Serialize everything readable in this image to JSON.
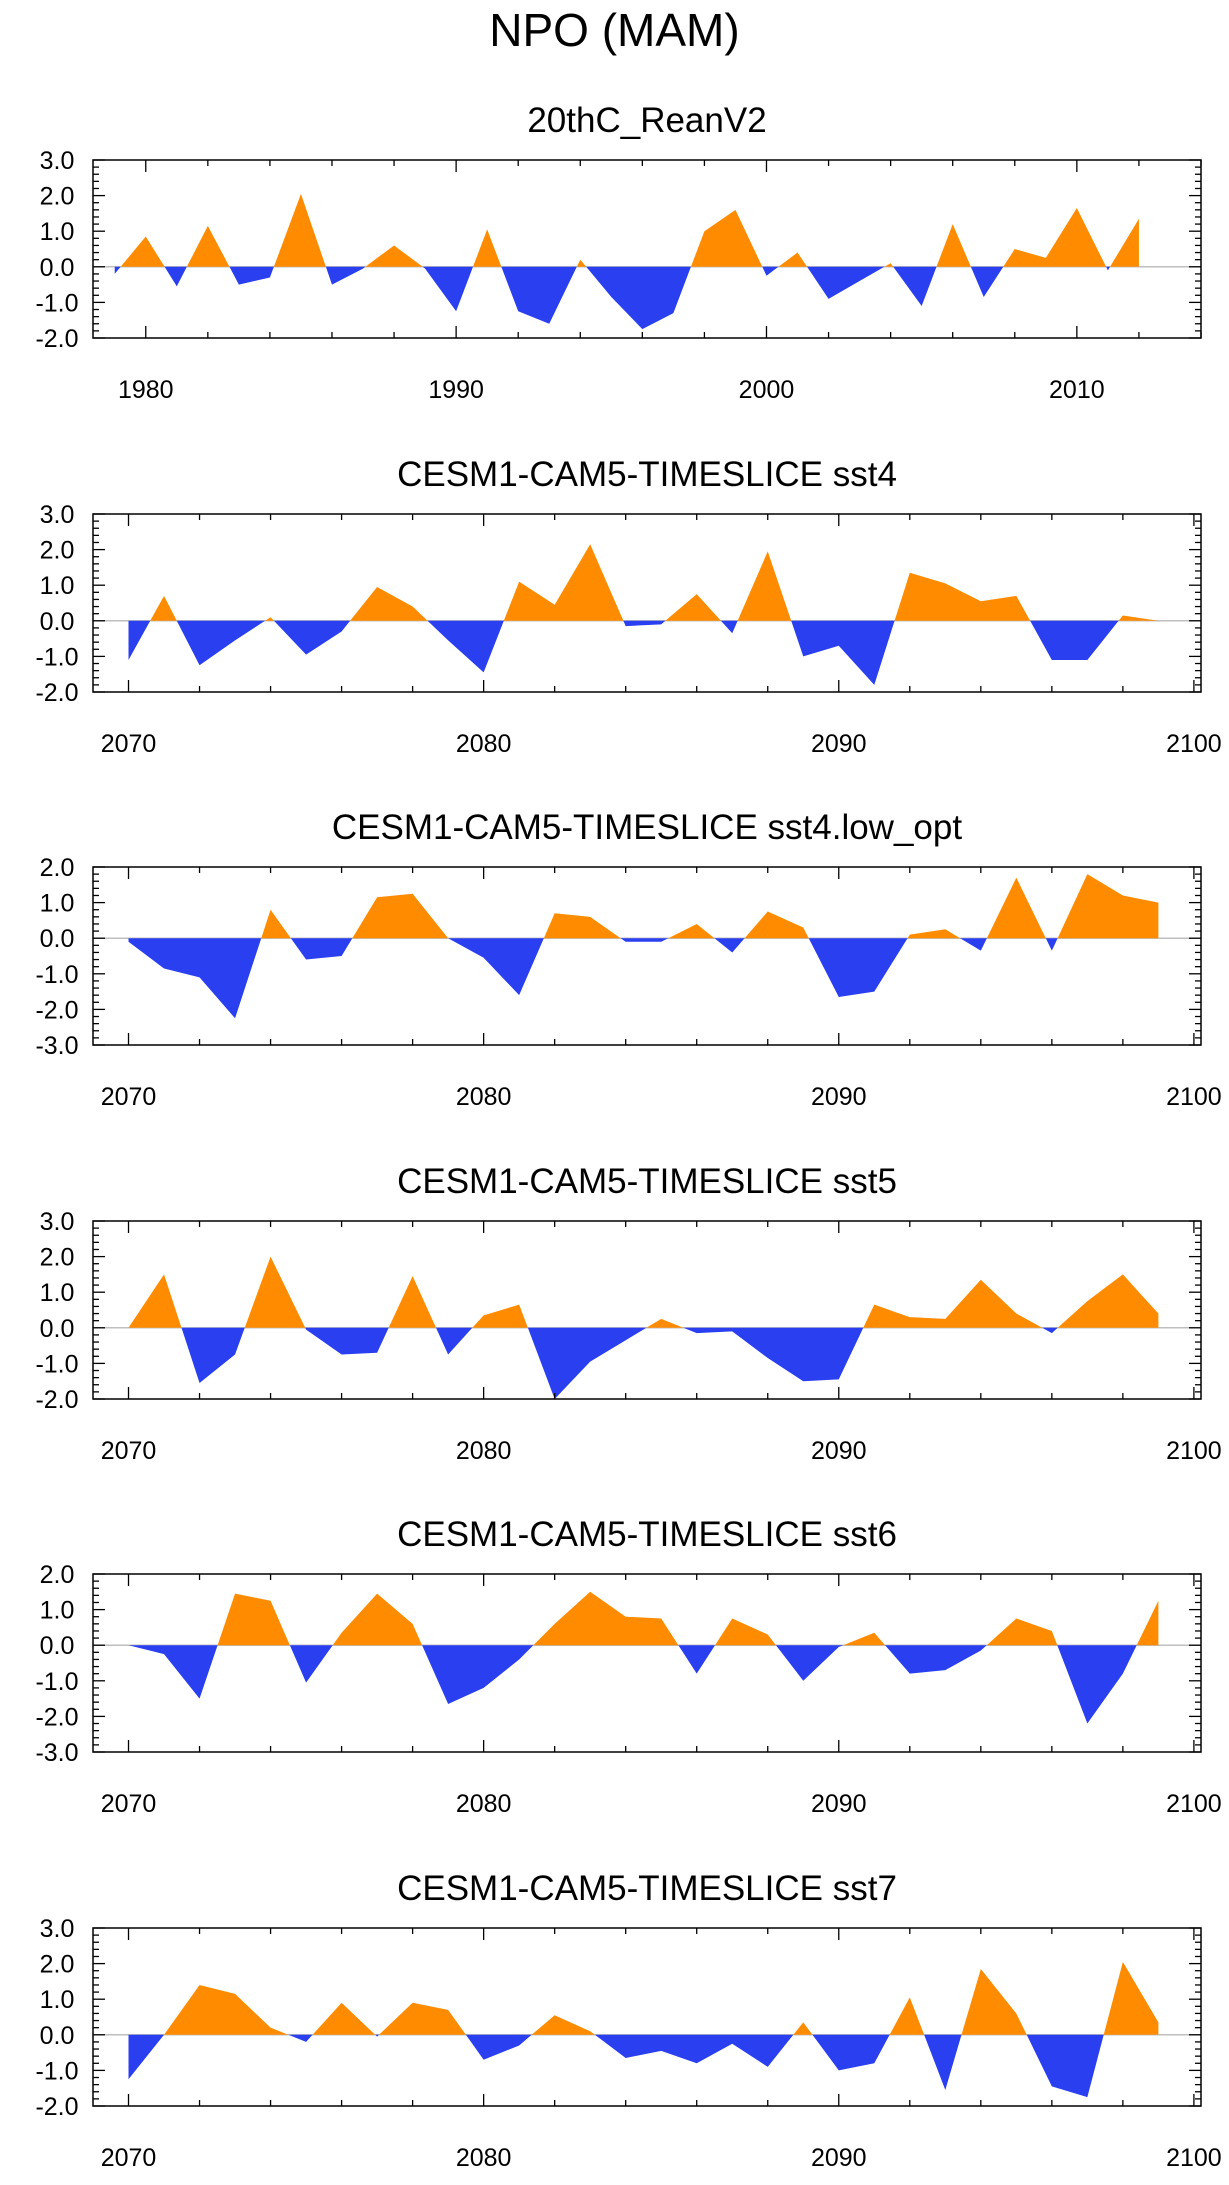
{
  "title": "NPO (MAM)",
  "colors": {
    "positive": "#ff8c00",
    "negative": "#2a3ff0",
    "axis": "#000000",
    "zero_line": "#bfbfbf"
  },
  "chart_data": [
    {
      "type": "area",
      "title": "20thC_ReanV2",
      "x": [
        1979,
        1980,
        1981,
        1982,
        1983,
        1984,
        1985,
        1986,
        1987,
        1988,
        1989,
        1990,
        1991,
        1992,
        1993,
        1994,
        1995,
        1996,
        1997,
        1998,
        1999,
        2000,
        2001,
        2002,
        2003,
        2004,
        2005,
        2006,
        2007,
        2008,
        2009,
        2010,
        2011,
        2012
      ],
      "values": [
        -0.2,
        0.85,
        -0.55,
        1.15,
        -0.5,
        -0.3,
        2.05,
        -0.5,
        -0.05,
        0.6,
        -0.05,
        -1.25,
        1.05,
        -1.25,
        -1.6,
        0.2,
        -0.85,
        -1.75,
        -1.3,
        1.0,
        1.6,
        -0.25,
        0.4,
        -0.9,
        -0.4,
        0.1,
        -1.1,
        1.2,
        -0.85,
        0.5,
        0.25,
        1.65,
        -0.1,
        1.35
      ],
      "xlim": [
        1978.3,
        2014.0
      ],
      "ylim": [
        -2.0,
        3.0
      ],
      "xticks": [
        1980,
        1990,
        2000,
        2010
      ],
      "yticks": [
        "3.0",
        "2.0",
        "1.0",
        "0.0",
        "-1.0",
        "-2.0"
      ],
      "ytick_values": [
        3.0,
        2.0,
        1.0,
        0.0,
        -1.0,
        -2.0
      ]
    },
    {
      "type": "area",
      "title": "CESM1-CAM5-TIMESLICE sst4",
      "x": [
        2070,
        2071,
        2072,
        2073,
        2074,
        2075,
        2076,
        2077,
        2078,
        2079,
        2080,
        2081,
        2082,
        2083,
        2084,
        2085,
        2086,
        2087,
        2088,
        2089,
        2090,
        2091,
        2092,
        2093,
        2094,
        2095,
        2096,
        2097,
        2098,
        2099
      ],
      "values": [
        -1.1,
        0.7,
        -1.25,
        -0.55,
        0.1,
        -0.95,
        -0.3,
        0.95,
        0.4,
        -0.55,
        -1.45,
        1.1,
        0.45,
        2.15,
        -0.15,
        -0.1,
        0.75,
        -0.35,
        1.95,
        -1.0,
        -0.7,
        -1.8,
        1.35,
        1.05,
        0.55,
        0.7,
        -1.1,
        -1.1,
        0.15,
        0.0
      ],
      "xlim": [
        2069.0,
        2100.2
      ],
      "ylim": [
        -2.0,
        3.0
      ],
      "xticks": [
        2070,
        2080,
        2090,
        2100
      ],
      "yticks": [
        "3.0",
        "2.0",
        "1.0",
        "0.0",
        "-1.0",
        "-2.0"
      ],
      "ytick_values": [
        3.0,
        2.0,
        1.0,
        0.0,
        -1.0,
        -2.0
      ]
    },
    {
      "type": "area",
      "title": "CESM1-CAM5-TIMESLICE sst4.low_opt",
      "x": [
        2070,
        2071,
        2072,
        2073,
        2074,
        2075,
        2076,
        2077,
        2078,
        2079,
        2080,
        2081,
        2082,
        2083,
        2084,
        2085,
        2086,
        2087,
        2088,
        2089,
        2090,
        2091,
        2092,
        2093,
        2094,
        2095,
        2096,
        2097,
        2098,
        2099
      ],
      "values": [
        -0.1,
        -0.85,
        -1.1,
        -2.25,
        0.8,
        -0.6,
        -0.5,
        1.15,
        1.25,
        0.0,
        -0.55,
        -1.6,
        0.7,
        0.6,
        -0.1,
        -0.1,
        0.4,
        -0.4,
        0.75,
        0.3,
        -1.65,
        -1.5,
        0.1,
        0.25,
        -0.35,
        1.7,
        -0.35,
        1.8,
        1.2,
        1.0
      ],
      "xlim": [
        2069.0,
        2100.2
      ],
      "ylim": [
        -3.0,
        2.0
      ],
      "xticks": [
        2070,
        2080,
        2090,
        2100
      ],
      "yticks": [
        "2.0",
        "1.0",
        "0.0",
        "-1.0",
        "-2.0",
        "-3.0"
      ],
      "ytick_values": [
        2.0,
        1.0,
        0.0,
        -1.0,
        -2.0,
        -3.0
      ]
    },
    {
      "type": "area",
      "title": "CESM1-CAM5-TIMESLICE sst5",
      "x": [
        2070,
        2071,
        2072,
        2073,
        2074,
        2075,
        2076,
        2077,
        2078,
        2079,
        2080,
        2081,
        2082,
        2083,
        2084,
        2085,
        2086,
        2087,
        2088,
        2089,
        2090,
        2091,
        2092,
        2093,
        2094,
        2095,
        2096,
        2097,
        2098,
        2099
      ],
      "values": [
        0.0,
        1.5,
        -1.55,
        -0.75,
        2.0,
        -0.05,
        -0.75,
        -0.7,
        1.45,
        -0.75,
        0.35,
        0.65,
        -2.0,
        -0.95,
        -0.35,
        0.25,
        -0.15,
        -0.1,
        -0.85,
        -1.5,
        -1.45,
        0.65,
        0.3,
        0.25,
        1.35,
        0.4,
        -0.15,
        0.75,
        1.5,
        0.4
      ],
      "xlim": [
        2069.0,
        2100.2
      ],
      "ylim": [
        -2.0,
        3.0
      ],
      "xticks": [
        2070,
        2080,
        2090,
        2100
      ],
      "yticks": [
        "3.0",
        "2.0",
        "1.0",
        "0.0",
        "-1.0",
        "-2.0"
      ],
      "ytick_values": [
        3.0,
        2.0,
        1.0,
        0.0,
        -1.0,
        -2.0
      ]
    },
    {
      "type": "area",
      "title": "CESM1-CAM5-TIMESLICE sst6",
      "x": [
        2070,
        2071,
        2072,
        2073,
        2074,
        2075,
        2076,
        2077,
        2078,
        2079,
        2080,
        2081,
        2082,
        2083,
        2084,
        2085,
        2086,
        2087,
        2088,
        2089,
        2090,
        2091,
        2092,
        2093,
        2094,
        2095,
        2096,
        2097,
        2098,
        2099
      ],
      "values": [
        0.0,
        -0.25,
        -1.5,
        1.45,
        1.25,
        -1.05,
        0.35,
        1.45,
        0.6,
        -1.65,
        -1.2,
        -0.4,
        0.6,
        1.5,
        0.8,
        0.75,
        -0.8,
        0.75,
        0.3,
        -1.0,
        -0.05,
        0.35,
        -0.8,
        -0.7,
        -0.15,
        0.75,
        0.4,
        -2.2,
        -0.8,
        1.25
      ],
      "xlim": [
        2069.0,
        2100.2
      ],
      "ylim": [
        -3.0,
        2.0
      ],
      "xticks": [
        2070,
        2080,
        2090,
        2100
      ],
      "yticks": [
        "2.0",
        "1.0",
        "0.0",
        "-1.0",
        "-2.0",
        "-3.0"
      ],
      "ytick_values": [
        2.0,
        1.0,
        0.0,
        -1.0,
        -2.0,
        -3.0
      ]
    },
    {
      "type": "area",
      "title": "CESM1-CAM5-TIMESLICE sst7",
      "x": [
        2070,
        2071,
        2072,
        2073,
        2074,
        2075,
        2076,
        2077,
        2078,
        2079,
        2080,
        2081,
        2082,
        2083,
        2084,
        2085,
        2086,
        2087,
        2088,
        2089,
        2090,
        2091,
        2092,
        2093,
        2094,
        2095,
        2096,
        2097,
        2098,
        2099
      ],
      "values": [
        -1.25,
        0.0,
        1.4,
        1.15,
        0.2,
        -0.2,
        0.9,
        -0.05,
        0.9,
        0.7,
        -0.7,
        -0.3,
        0.55,
        0.1,
        -0.65,
        -0.45,
        -0.8,
        -0.25,
        -0.9,
        0.35,
        -1.0,
        -0.8,
        1.05,
        -1.55,
        1.85,
        0.6,
        -1.45,
        -1.75,
        2.05,
        0.35
      ],
      "xlim": [
        2069.0,
        2100.2
      ],
      "ylim": [
        -2.0,
        3.0
      ],
      "xticks": [
        2070,
        2080,
        2090,
        2100
      ],
      "yticks": [
        "3.0",
        "2.0",
        "1.0",
        "0.0",
        "-1.0",
        "-2.0"
      ],
      "ytick_values": [
        3.0,
        2.0,
        1.0,
        0.0,
        -1.0,
        -2.0
      ]
    }
  ]
}
